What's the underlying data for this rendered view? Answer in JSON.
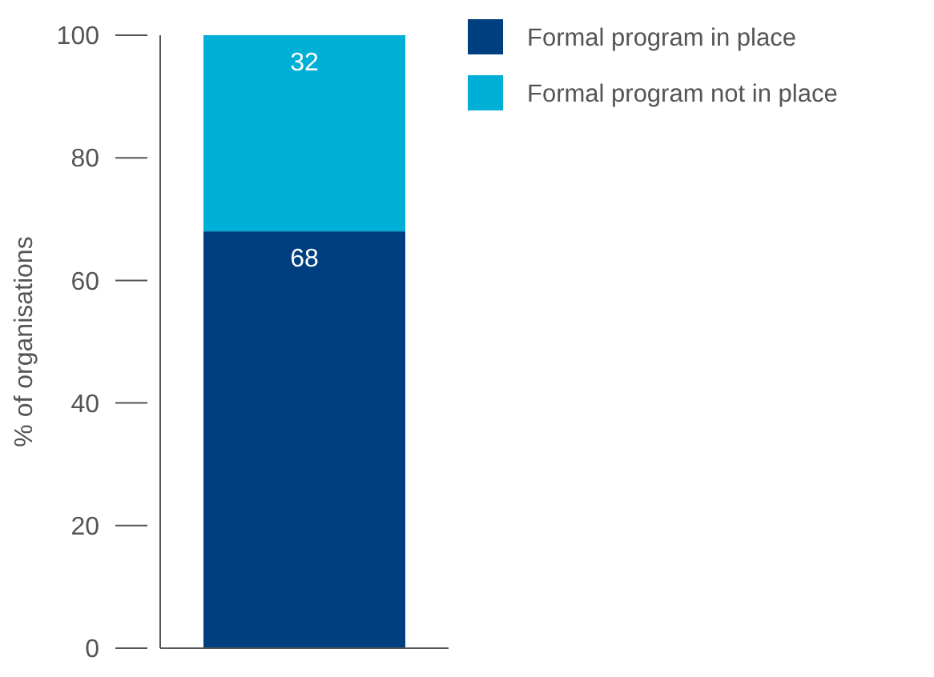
{
  "chart_data": {
    "type": "bar",
    "stacked": true,
    "categories": [
      null
    ],
    "ylabel": "% of organisations",
    "ylim": [
      0,
      100
    ],
    "yticks": [
      0,
      20,
      40,
      60,
      80,
      100
    ],
    "data_labels": true,
    "legend": "top right",
    "grid": false,
    "series": [
      {
        "name": "Formal program in place",
        "color": "#003f7f",
        "values": [
          68
        ]
      },
      {
        "name": "Formal program not in place",
        "color": "#00afd6",
        "values": [
          32
        ]
      }
    ]
  }
}
